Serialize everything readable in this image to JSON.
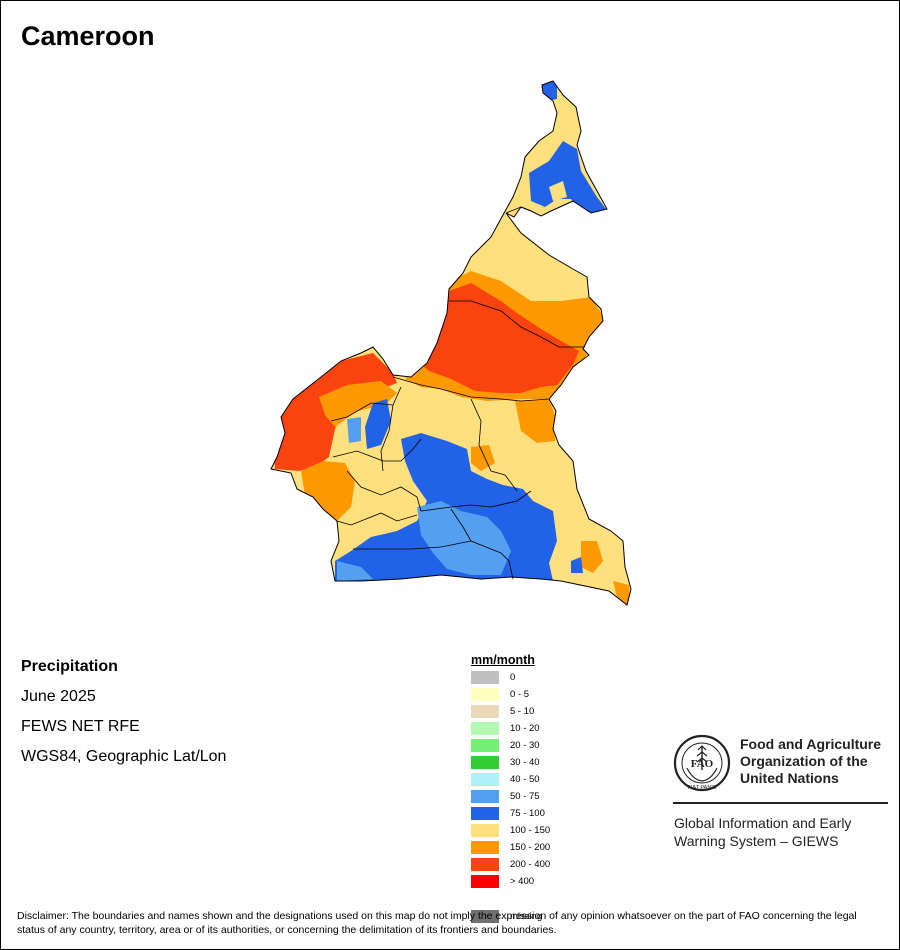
{
  "title": "Cameroon",
  "info": {
    "variable": "Precipitation",
    "period": "June 2025",
    "source": "FEWS NET RFE",
    "projection": "WGS84, Geographic Lat/Lon"
  },
  "legend": {
    "title": "mm/month",
    "items": [
      {
        "label": "0",
        "color": "#c0c0c0"
      },
      {
        "label": "0 - 5",
        "color": "#ffffbe"
      },
      {
        "label": "5 - 10",
        "color": "#ead9b8"
      },
      {
        "label": "10 - 20",
        "color": "#b3f7b3"
      },
      {
        "label": "20 - 30",
        "color": "#73ef73"
      },
      {
        "label": "30 - 40",
        "color": "#33cc33"
      },
      {
        "label": "40 - 50",
        "color": "#b0f0f8"
      },
      {
        "label": "50 - 75",
        "color": "#559ff0"
      },
      {
        "label": "75 - 100",
        "color": "#2262e6"
      },
      {
        "label": "100 - 150",
        "color": "#ffe07e"
      },
      {
        "label": "150 - 200",
        "color": "#ff9900"
      },
      {
        "label": "200 - 400",
        "color": "#fa4410"
      },
      {
        "label": "> 400",
        "color": "#ff0000"
      },
      {
        "label": "missing",
        "color": "#707070"
      }
    ]
  },
  "logo": {
    "org_name_lines": [
      "Food and Agriculture",
      "Organization of the",
      "United Nations"
    ],
    "logo_text": "FAO",
    "motto": "FIAT PANIS",
    "program_lines": [
      "Global Information and Early",
      "Warning System – GIEWS"
    ]
  },
  "disclaimer": "Disclaimer: The boundaries and names shown and the designations used on this map do not imply the expression of any opinion whatsoever on the part of FAO concerning the legal status of any country, territory, area or of its authorities, or concerning the delimitation of its frontiers and boundaries."
}
